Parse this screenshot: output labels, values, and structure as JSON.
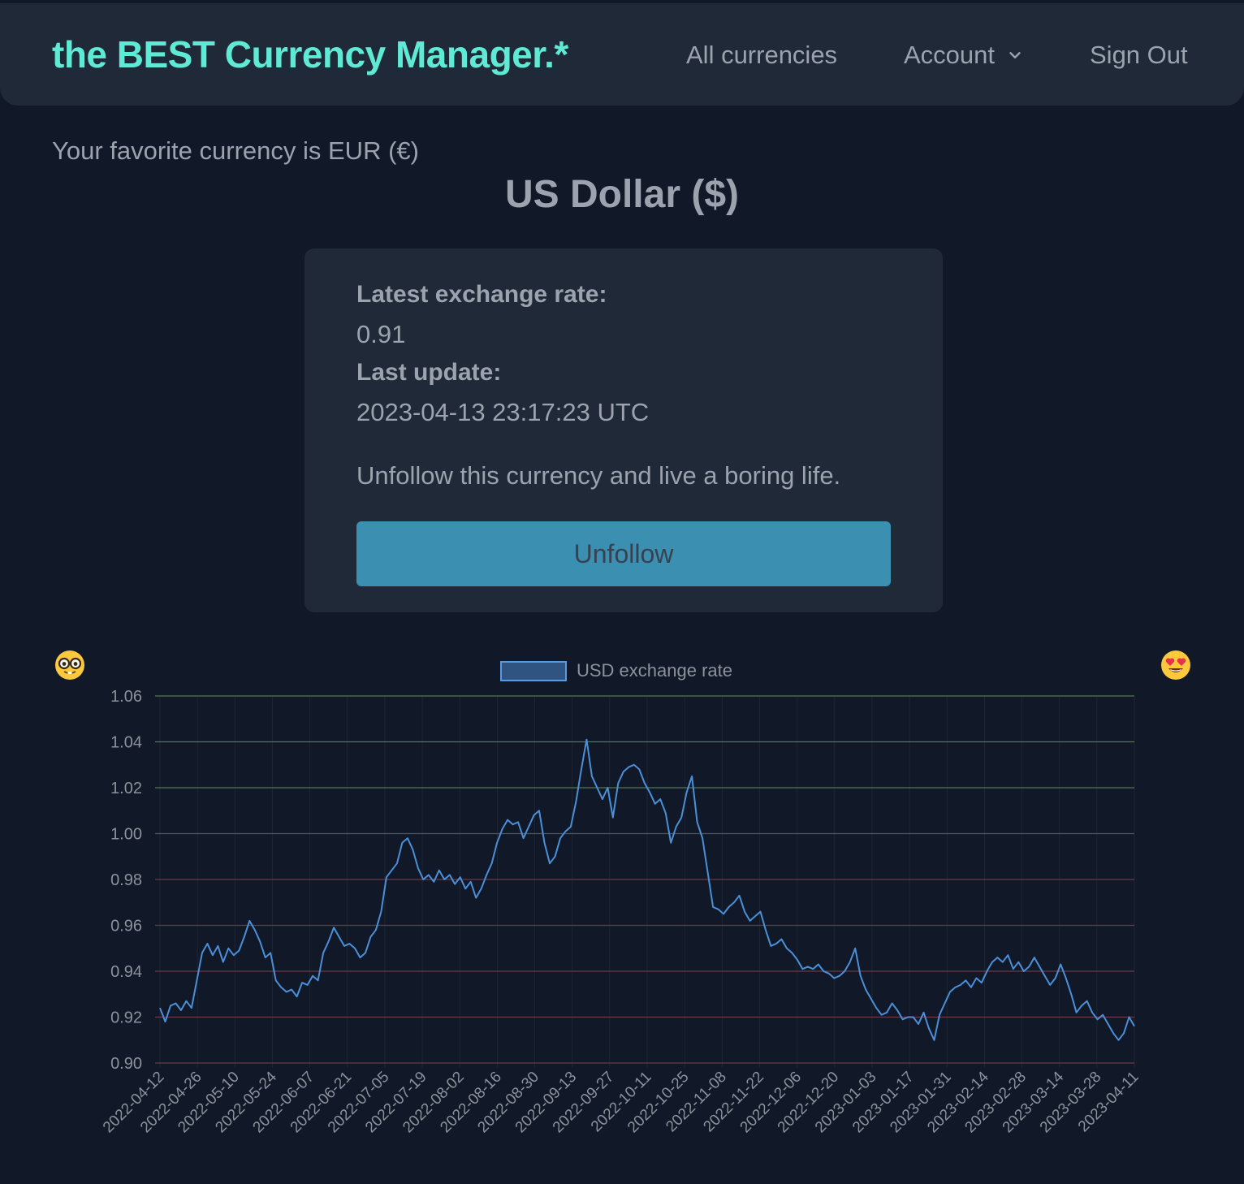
{
  "header": {
    "brand": "the BEST Currency Manager.*",
    "nav": {
      "all_currencies": "All currencies",
      "account": "Account",
      "sign_out": "Sign Out"
    },
    "icons": {
      "account_dropdown": "chevron-down-icon"
    }
  },
  "favorite": "Your favorite currency is EUR (€)",
  "currency_title": "US Dollar ($)",
  "card": {
    "rate_label": "Latest exchange rate:",
    "rate_value": "0.91",
    "update_label": "Last update:",
    "update_value": "2023-04-13 23:17:23 UTC",
    "message": "Unfollow this currency and live a boring life.",
    "button": "Unfollow"
  },
  "faces": {
    "left": "nerd-face-icon",
    "right": "heart-eyes-face-icon"
  },
  "colors": {
    "background": "#111827",
    "panel": "#1f2937",
    "brand": "#5eead4",
    "button": "#3b8fb0",
    "line": "#4a90d9",
    "grid_above": "#4f7a52",
    "grid_mid": "#4b5563",
    "grid_below": "#6b3a44"
  },
  "chart_data": {
    "type": "line",
    "legend": [
      "USD exchange rate"
    ],
    "legend_position": "top-center",
    "ylim": [
      0.9,
      1.06
    ],
    "y_ticks": [
      "1.06",
      "1.04",
      "1.02",
      "1.00",
      "0.98",
      "0.96",
      "0.94",
      "0.92",
      "0.90"
    ],
    "x_ticks": [
      "2022-04-12",
      "2022-04-26",
      "2022-05-10",
      "2022-05-24",
      "2022-06-07",
      "2022-06-21",
      "2022-07-05",
      "2022-07-19",
      "2022-08-02",
      "2022-08-16",
      "2022-08-30",
      "2022-09-13",
      "2022-09-27",
      "2022-10-11",
      "2022-10-25",
      "2022-11-08",
      "2022-11-22",
      "2022-12-06",
      "2022-12-20",
      "2023-01-03",
      "2023-01-17",
      "2023-01-31",
      "2023-02-14",
      "2023-02-28",
      "2023-03-14",
      "2023-03-28",
      "2023-04-11"
    ],
    "grid": true,
    "series": [
      {
        "name": "USD exchange rate",
        "x_start": "2022-04-12",
        "x_end": "2023-04-13",
        "values": [
          0.924,
          0.918,
          0.925,
          0.926,
          0.923,
          0.927,
          0.924,
          0.936,
          0.948,
          0.952,
          0.947,
          0.951,
          0.944,
          0.95,
          0.947,
          0.949,
          0.955,
          0.962,
          0.958,
          0.953,
          0.946,
          0.948,
          0.936,
          0.933,
          0.931,
          0.932,
          0.929,
          0.935,
          0.934,
          0.938,
          0.936,
          0.948,
          0.953,
          0.959,
          0.955,
          0.951,
          0.952,
          0.95,
          0.946,
          0.948,
          0.955,
          0.958,
          0.966,
          0.981,
          0.984,
          0.987,
          0.996,
          0.998,
          0.993,
          0.985,
          0.98,
          0.982,
          0.979,
          0.984,
          0.98,
          0.982,
          0.978,
          0.981,
          0.976,
          0.979,
          0.972,
          0.976,
          0.982,
          0.987,
          0.996,
          1.002,
          1.006,
          1.004,
          1.005,
          0.998,
          1.003,
          1.008,
          1.01,
          0.996,
          0.987,
          0.99,
          0.998,
          1.001,
          1.003,
          1.014,
          1.028,
          1.041,
          1.025,
          1.02,
          1.015,
          1.02,
          1.007,
          1.022,
          1.027,
          1.029,
          1.03,
          1.028,
          1.022,
          1.018,
          1.013,
          1.015,
          1.009,
          0.996,
          1.003,
          1.007,
          1.018,
          1.025,
          1.005,
          0.998,
          0.983,
          0.968,
          0.967,
          0.965,
          0.968,
          0.97,
          0.973,
          0.966,
          0.962,
          0.964,
          0.966,
          0.958,
          0.951,
          0.952,
          0.954,
          0.95,
          0.948,
          0.945,
          0.941,
          0.942,
          0.941,
          0.943,
          0.94,
          0.939,
          0.937,
          0.938,
          0.94,
          0.944,
          0.95,
          0.938,
          0.932,
          0.928,
          0.924,
          0.921,
          0.922,
          0.926,
          0.923,
          0.919,
          0.92,
          0.92,
          0.917,
          0.922,
          0.915,
          0.91,
          0.921,
          0.926,
          0.931,
          0.933,
          0.934,
          0.936,
          0.933,
          0.937,
          0.935,
          0.94,
          0.944,
          0.946,
          0.944,
          0.947,
          0.941,
          0.944,
          0.94,
          0.942,
          0.946,
          0.942,
          0.938,
          0.934,
          0.937,
          0.943,
          0.937,
          0.93,
          0.922,
          0.925,
          0.927,
          0.922,
          0.919,
          0.921,
          0.917,
          0.913,
          0.91,
          0.913,
          0.92,
          0.916
        ]
      }
    ]
  }
}
